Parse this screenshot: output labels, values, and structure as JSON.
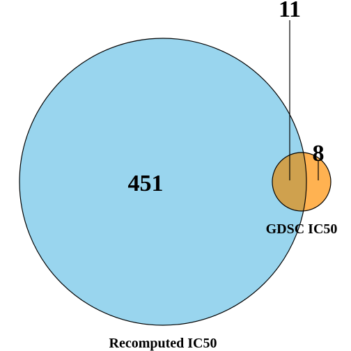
{
  "diagram": {
    "type": "venn",
    "sets": [
      {
        "label": "Recomputed IC50",
        "color": "#87ceeb"
      },
      {
        "label": "GDSC IC50",
        "color": "#ffa533"
      }
    ],
    "overlap_color": "#cfa14e",
    "outline_color": "#000000",
    "regions": {
      "recomputed_only": "451",
      "both": "11",
      "gdsc_only": "8"
    }
  }
}
